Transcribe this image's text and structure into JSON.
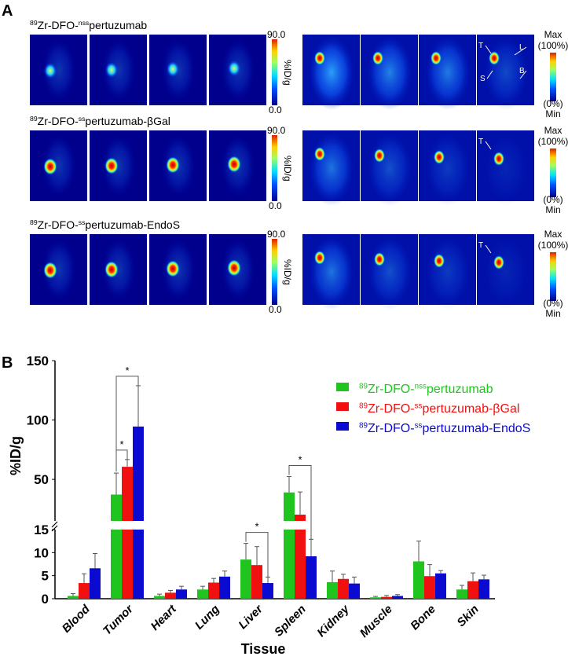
{
  "panel_a": {
    "label": "A",
    "rows": [
      {
        "title_sup": "89",
        "title_a": "Zr-DFO-",
        "title_sup2": "nss",
        "title_b": "pertuzumab",
        "intensity": 0.55,
        "annotations": [
          "T",
          "L",
          "S",
          "B"
        ]
      },
      {
        "title_sup": "89",
        "title_a": "Zr-DFO-",
        "title_sup2": "ss",
        "title_b": "pertuzumab-βGal",
        "intensity": 0.85,
        "annotations": [
          "T"
        ]
      },
      {
        "title_sup": "89",
        "title_a": "Zr-DFO-",
        "title_sup2": "ss",
        "title_b": "pertuzumab-EndoS",
        "intensity": 0.9,
        "annotations": [
          "T"
        ]
      }
    ],
    "scale_left": {
      "max": "90.0",
      "min": "0.0",
      "unit": "%ID/g"
    },
    "scale_right": {
      "max": "Max",
      "max_pct": "(100%)",
      "min_pct": "(0%)",
      "min": "Min"
    }
  },
  "chart_data": {
    "panel_label": "B",
    "type": "bar",
    "xlabel": "Tissue",
    "ylabel": "%ID/g",
    "y_axis_break": true,
    "ylim_lower": [
      0,
      15
    ],
    "ylim_upper": [
      15,
      150
    ],
    "yticks_lower": [
      "0",
      "5",
      "10",
      "15"
    ],
    "yticks_upper": [
      "50",
      "100",
      "150"
    ],
    "categories": [
      "Blood",
      "Tumor",
      "Heart",
      "Lung",
      "Liver",
      "Spleen",
      "Kidney",
      "Muscle",
      "Bone",
      "Skin"
    ],
    "legend_position": "top-right",
    "series": [
      {
        "name_sup": "89",
        "name_a": "Zr-DFO-",
        "name_sup2": "nss",
        "name_b": "pertuzumab",
        "color": "#1fc41f",
        "values": [
          0.6,
          37.2,
          0.6,
          2.0,
          8.5,
          39.0,
          3.6,
          0.3,
          8.1,
          2.0
        ],
        "errors": [
          0.5,
          18.1,
          0.4,
          0.7,
          3.5,
          13.4,
          2.4,
          0.2,
          4.4,
          0.9
        ]
      },
      {
        "name_sup": "89",
        "name_a": "Zr-DFO-",
        "name_sup2": "ss",
        "name_b": "pertuzumab-βGal",
        "color": "#f01010",
        "values": [
          3.4,
          60.6,
          1.3,
          3.5,
          7.3,
          20.3,
          4.3,
          0.4,
          4.9,
          3.8
        ],
        "errors": [
          2.0,
          6.1,
          0.5,
          0.9,
          4.0,
          19.1,
          1.0,
          0.3,
          2.5,
          1.8
        ]
      },
      {
        "name_sup": "89",
        "name_a": "Zr-DFO-",
        "name_sup2": "ss",
        "name_b": "pertuzumab-EndoS",
        "color": "#0a0ad0",
        "values": [
          6.6,
          94.5,
          2.0,
          4.8,
          3.4,
          9.2,
          3.3,
          0.6,
          5.5,
          4.2
        ],
        "errors": [
          3.2,
          34.4,
          0.7,
          1.2,
          1.3,
          3.7,
          1.4,
          0.3,
          0.6,
          0.9
        ]
      }
    ],
    "significance": [
      {
        "category": "Tumor",
        "from": 0,
        "to": 2,
        "label": "*"
      },
      {
        "category": "Tumor",
        "from": 0,
        "to": 1,
        "label": "*"
      },
      {
        "category": "Liver",
        "from": 0,
        "to": 2,
        "label": "*"
      },
      {
        "category": "Spleen",
        "from": 0,
        "to": 2,
        "label": "*"
      }
    ]
  }
}
